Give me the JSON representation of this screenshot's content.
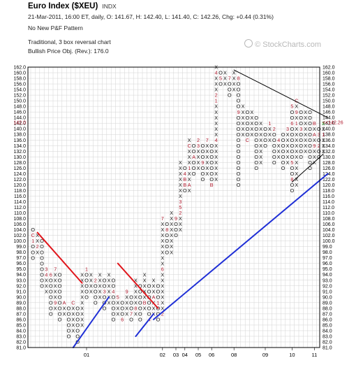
{
  "header": {
    "title": "Euro Index ($XEU)",
    "ticker": "INDX",
    "quote_line": "21-Mar-2011, 16:00 ET, daily, O: 141.67, H: 142.40, L: 141.40, C: 142.26, Chg: +0.44 (0.31%)",
    "pattern_line": "No New P&F Pattern",
    "method_line": "Traditional, 3 box reversal chart",
    "objective_line": "Bullish Price Obj. (Rev.): 176.0"
  },
  "watermark": "© StockCharts.com",
  "colors": {
    "x_color": "#111111",
    "o_color": "#111111",
    "month_marker": "#b0192c",
    "resistance": "#e0151b",
    "support": "#1f2fd6",
    "trendline": "#000000",
    "last_box": "#1a9a1a",
    "current_price": "#b0192c",
    "grid": "#d3d3d3",
    "border": "#000000"
  },
  "chart_data": {
    "type": "point-and-figure",
    "box_size": 2,
    "reversal": 3,
    "method": "Traditional",
    "ylim": [
      81,
      162
    ],
    "y_ticks": [
      81,
      82,
      83,
      84,
      85,
      86,
      87,
      88,
      89,
      90,
      91,
      92,
      93,
      94,
      95,
      96,
      97,
      98,
      99,
      100,
      102,
      104,
      106,
      108,
      110,
      112,
      114,
      116,
      118,
      120,
      122,
      124,
      126,
      128,
      130,
      132,
      134,
      136,
      138,
      140,
      142,
      144,
      146,
      148,
      150,
      152,
      154,
      156,
      158,
      160,
      162
    ],
    "y_tick_labels": [
      "81.0",
      "82.0",
      "83.0",
      "84.0",
      "85.0",
      "86.0",
      "87.0",
      "88.0",
      "89.0",
      "90.0",
      "91.0",
      "92.0",
      "93.0",
      "94.0",
      "95.0",
      "96.0",
      "97.0",
      "98.0",
      "99.0",
      "100.0",
      "102.0",
      "104.0",
      "106.0",
      "108.0",
      "110.0",
      "112.0",
      "114.0",
      "116.0",
      "118.0",
      "120.0",
      "122.0",
      "124.0",
      "126.0",
      "128.0",
      "130.0",
      "132.0",
      "134.0",
      "136.0",
      "138.0",
      "140.0",
      "142.0",
      "144.0",
      "146.0",
      "148.0",
      "150.0",
      "152.0",
      "154.0",
      "156.0",
      "158.0",
      "160.0",
      "162.0"
    ],
    "current_price": 142.26,
    "current_price_label": "142.0",
    "current_price_tag": "<<142.26",
    "x_axis_labels": [
      {
        "label": "01",
        "column": 12
      },
      {
        "label": "02",
        "column": 29
      },
      {
        "label": "03",
        "column": 32
      },
      {
        "label": "04",
        "column": 34
      },
      {
        "label": "05",
        "column": 37
      },
      {
        "label": "06",
        "column": 40
      },
      {
        "label": "08",
        "column": 45
      },
      {
        "label": "09",
        "column": 52
      },
      {
        "label": "10",
        "column": 58
      },
      {
        "label": "11",
        "column": 63
      }
    ],
    "columns": [
      {
        "type": "O",
        "top": 104,
        "bottom": 97,
        "marks": {
          "106": "B",
          "102": "C",
          "100": "1"
        }
      },
      {
        "type": "X",
        "top": 102,
        "bottom": 98,
        "marks": {
          "99": "2"
        }
      },
      {
        "type": "O",
        "top": 100,
        "bottom": 92
      },
      {
        "type": "X",
        "top": 95,
        "bottom": 91,
        "marks": {
          "95": "3",
          "94": "4"
        }
      },
      {
        "type": "O",
        "top": 94,
        "bottom": 87,
        "marks": {
          "94": "6"
        }
      },
      {
        "type": "X",
        "top": 95,
        "bottom": 88,
        "marks": {
          "95": "7",
          "89": "9"
        }
      },
      {
        "type": "O",
        "top": 94,
        "bottom": 86
      },
      {
        "type": "X",
        "top": 89,
        "bottom": 87,
        "marks": {
          "89": "A"
        }
      },
      {
        "type": "O",
        "top": 88,
        "bottom": 83
      },
      {
        "type": "X",
        "top": 89,
        "bottom": 84,
        "marks": {
          "89": "C"
        }
      },
      {
        "type": "O",
        "top": 88,
        "bottom": 82
      },
      {
        "type": "X",
        "top": 94,
        "bottom": 85
      },
      {
        "type": "O",
        "top": 95,
        "bottom": 90,
        "marks": {
          "95": "1"
        }
      },
      {
        "type": "X",
        "top": 94,
        "bottom": 91
      },
      {
        "type": "O",
        "top": 93,
        "bottom": 89,
        "marks": {
          "93": "2"
        }
      },
      {
        "type": "X",
        "top": 94,
        "bottom": 90
      },
      {
        "type": "O",
        "top": 93,
        "bottom": 88,
        "marks": {
          "91": "3"
        }
      },
      {
        "type": "X",
        "top": 94,
        "bottom": 89
      },
      {
        "type": "O",
        "top": 93,
        "bottom": 86,
        "marks": {
          "91": "4"
        }
      },
      {
        "type": "X",
        "top": 90,
        "bottom": 87,
        "marks": {
          "90": "5"
        }
      },
      {
        "type": "O",
        "top": 89,
        "bottom": 86,
        "marks": {
          "86": "6"
        }
      },
      {
        "type": "X",
        "top": 91,
        "bottom": 87,
        "marks": {
          "91": "9"
        }
      },
      {
        "type": "O",
        "top": 90,
        "bottom": 86,
        "marks": {
          "87": "7"
        }
      },
      {
        "type": "X",
        "top": 93,
        "bottom": 87,
        "marks": {
          "88": "8"
        }
      },
      {
        "type": "O",
        "top": 92,
        "bottom": 86
      },
      {
        "type": "X",
        "top": 94,
        "bottom": 88,
        "marks": {
          "89": "B"
        }
      },
      {
        "type": "O",
        "top": 92,
        "bottom": 86,
        "marks": {
          "86": "4"
        }
      },
      {
        "type": "X",
        "top": 93,
        "bottom": 87,
        "marks": {
          "90": "A"
        }
      },
      {
        "type": "O",
        "top": 92,
        "bottom": 86,
        "marks": {
          "89": "1"
        }
      },
      {
        "type": "X",
        "top": 108,
        "bottom": 87,
        "marks": {
          "108": "7",
          "95": "6",
          "87": "2"
        }
      },
      {
        "type": "O",
        "top": 106,
        "bottom": 98,
        "marks": {
          "104": "8"
        }
      },
      {
        "type": "X",
        "top": 110,
        "bottom": 98
      },
      {
        "type": "O",
        "top": 108,
        "bottom": 102,
        "marks": {
          "108": "9"
        }
      },
      {
        "type": "X",
        "top": 128,
        "bottom": 104,
        "marks": {
          "114": "3",
          "112": "5",
          "110": "2"
        }
      },
      {
        "type": "O",
        "top": 126,
        "bottom": 118,
        "marks": {
          "124": "4",
          "122": "B",
          "120": "B"
        }
      },
      {
        "type": "X",
        "top": 136,
        "bottom": 118,
        "marks": {
          "134": "C",
          "126": "1",
          "120": "A"
        }
      },
      {
        "type": "O",
        "top": 134,
        "bottom": 124,
        "marks": {
          "130": "A"
        }
      },
      {
        "type": "X",
        "top": 136,
        "bottom": 126,
        "marks": {
          "136": "2",
          "134": "3"
        }
      },
      {
        "type": "O",
        "top": 134,
        "bottom": 122,
        "marks": {
          "128": "9"
        }
      },
      {
        "type": "X",
        "top": 136,
        "bottom": 124,
        "marks": {
          "136": "7"
        }
      },
      {
        "type": "O",
        "top": 134,
        "bottom": 120,
        "marks": {
          "120": "B"
        }
      },
      {
        "type": "X",
        "top": 162,
        "bottom": 122,
        "marks": {
          "160": "4",
          "152": "2",
          "150": "1",
          "136": "4"
        }
      },
      {
        "type": "O",
        "top": 160,
        "bottom": 156,
        "marks": {
          "158": "5"
        }
      },
      {
        "type": "X",
        "top": 160,
        "bottom": 156
      },
      {
        "type": "O",
        "top": 158,
        "bottom": 152,
        "marks": {
          "158": "7"
        }
      },
      {
        "type": "X",
        "top": 160,
        "bottom": 154
      },
      {
        "type": "O",
        "top": 158,
        "bottom": 120,
        "marks": {
          "158": "8",
          "146": "9"
        }
      },
      {
        "type": "X",
        "top": 148,
        "bottom": 138
      },
      {
        "type": "O",
        "top": 146,
        "bottom": 136,
        "marks": {
          "136": "C"
        }
      },
      {
        "type": "X",
        "top": 146,
        "bottom": 138
      },
      {
        "type": "O",
        "top": 144,
        "bottom": 126
      },
      {
        "type": "X",
        "top": 142,
        "bottom": 128
      },
      {
        "type": "O",
        "top": 140,
        "bottom": 134
      },
      {
        "type": "X",
        "top": 142,
        "bottom": 136,
        "marks": {
          "142": "1"
        }
      },
      {
        "type": "O",
        "top": 140,
        "bottom": 128,
        "marks": {
          "140": "2"
        }
      },
      {
        "type": "X",
        "top": 136,
        "bottom": 130,
        "marks": {
          "136": "4"
        }
      },
      {
        "type": "O",
        "top": 138,
        "bottom": 126
      },
      {
        "type": "X",
        "top": 140,
        "bottom": 128,
        "marks": {
          "140": "3"
        }
      },
      {
        "type": "O",
        "top": 148,
        "bottom": 118,
        "marks": {
          "148": "5",
          "142": "6",
          "128": "5",
          "122": "8"
        }
      },
      {
        "type": "X",
        "top": 150,
        "bottom": 120,
        "marks": {
          "150": "C",
          "146": "9",
          "142": "1"
        }
      },
      {
        "type": "O",
        "top": 146,
        "bottom": 130,
        "marks": {
          "140": "3"
        }
      },
      {
        "type": "X",
        "top": 146,
        "bottom": 132
      },
      {
        "type": "O",
        "top": 146,
        "bottom": 126
      },
      {
        "type": "X",
        "top": 142,
        "bottom": 128,
        "marks": {
          "142": "B",
          "138": "A",
          "134": "9"
        }
      },
      {
        "type": "O",
        "top": 140,
        "bottom": 130,
        "marks": {
          "138": "3",
          "134": "2"
        }
      },
      {
        "type": "X",
        "top": 142,
        "bottom": 132,
        "marks": {
          "138": "1"
        }
      }
    ],
    "trendlines": [
      {
        "kind": "resistance",
        "from": [
          1,
          103
        ],
        "to": [
          11,
          92.5
        ]
      },
      {
        "kind": "resistance",
        "from": [
          19,
          96
        ],
        "to": [
          28,
          88
        ]
      },
      {
        "kind": "support",
        "from": [
          9,
          81
        ],
        "to": [
          17,
          90
        ]
      },
      {
        "kind": "support",
        "from": [
          23,
          83
        ],
        "to": [
          27,
          87
        ]
      },
      {
        "kind": "support",
        "from": [
          27,
          86
        ],
        "to": [
          66,
          124
        ]
      },
      {
        "kind": "trendline",
        "from": [
          45,
          161
        ],
        "to": [
          66,
          144
        ]
      },
      {
        "kind": "trendline",
        "from": [
          58,
          121
        ],
        "to": [
          65,
          131
        ]
      }
    ]
  }
}
